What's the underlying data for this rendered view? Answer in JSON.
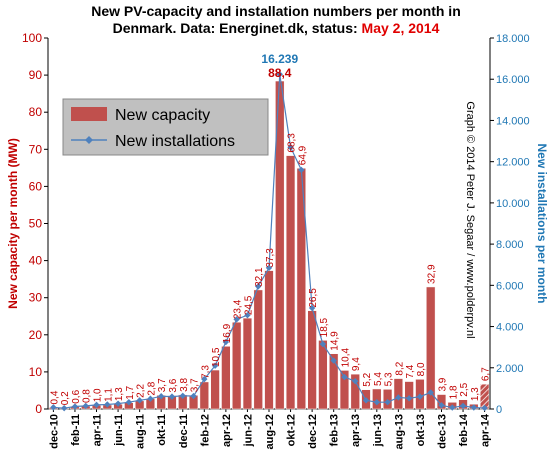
{
  "title": {
    "line1": "New PV-capacity and installation  numbers per month in",
    "line2": "Denmark. Data: Energinet.dk, status:",
    "status": "May 2, 2014"
  },
  "credit": "Graph © 2014 Peter J. Segaar / www.polderpv.nl",
  "colors": {
    "capacity": "#c0504d",
    "installations": "#4f81bd",
    "left_axis": "#c00000",
    "right_axis": "#1f77b4"
  },
  "chart_data": {
    "type": "bar",
    "categories": [
      "dec-10",
      "jan-11",
      "feb-11",
      "mar-11",
      "apr-11",
      "may-11",
      "jun-11",
      "jul-11",
      "aug-11",
      "sep-11",
      "okt-11",
      "nov-11",
      "dec-11",
      "jan-12",
      "feb-12",
      "mar-12",
      "apr-12",
      "may-12",
      "jun-12",
      "jul-12",
      "aug-12",
      "sep-12",
      "okt-12",
      "nov-12",
      "dec-12",
      "jan-13",
      "feb-13",
      "mar-13",
      "apr-13",
      "may-13",
      "jun-13",
      "jul-13",
      "aug-13",
      "sep-13",
      "okt-13",
      "nov-13",
      "dec-13",
      "jan-14",
      "feb-14",
      "mar-14",
      "apr-14"
    ],
    "tick_labels": [
      "dec-10",
      "feb-11",
      "apr-11",
      "jun-11",
      "aug-11",
      "okt-11",
      "dec-11",
      "feb-12",
      "apr-12",
      "jun-12",
      "aug-12",
      "okt-12",
      "dec-12",
      "feb-13",
      "apr-13",
      "jun-13",
      "aug-13",
      "okt-13",
      "dec-13",
      "feb-14",
      "apr-14"
    ],
    "series": [
      {
        "name": "New capacity",
        "axis": "left",
        "values": [
          0.4,
          0.2,
          0.6,
          0.8,
          1.0,
          1.1,
          1.3,
          1.7,
          2.2,
          2.8,
          3.7,
          3.6,
          3.8,
          3.7,
          7.3,
          10.5,
          16.9,
          23.4,
          24.5,
          32.1,
          37.3,
          88.4,
          68.3,
          64.9,
          26.5,
          18.5,
          14.9,
          10.4,
          9.4,
          5.2,
          5.4,
          5.3,
          8.2,
          7.4,
          8.0,
          32.9,
          3.9,
          1.8,
          2.5,
          1.3,
          6.7
        ],
        "labels": [
          "0,4",
          "0,2",
          "0,6",
          "0,8",
          "1,0",
          "1,1",
          "1,3",
          "1,7",
          "2,2",
          "2,8",
          "3,7",
          "3,6",
          "3,8",
          "3,7",
          "7,3",
          "10,5",
          "16,9",
          "23,4",
          "24,5",
          "32,1",
          "37,3",
          "88,4",
          "68,3",
          "64,9",
          "26,5",
          "18,5",
          "14,9",
          "10,4",
          "9,4",
          "5,2",
          "5,4",
          "5,3",
          "8,2",
          "7,4",
          "8,0",
          "32,9",
          "3,9",
          "1,8",
          "2,5",
          "1,3",
          "6,7"
        ]
      },
      {
        "name": "New installations",
        "axis": "right",
        "values": [
          80,
          40,
          120,
          150,
          200,
          220,
          260,
          330,
          420,
          500,
          620,
          600,
          640,
          630,
          1450,
          2100,
          3250,
          4350,
          4550,
          5950,
          6850,
          16239,
          12700,
          11600,
          4900,
          3150,
          2350,
          1550,
          1350,
          420,
          330,
          330,
          560,
          520,
          600,
          800,
          180,
          70,
          150,
          70,
          50
        ]
      }
    ],
    "peak_label": "16.239",
    "ylabel": "New capacity per month (MW)",
    "y2label": "New installations per month",
    "ylim": [
      0,
      100
    ],
    "y2lim": [
      0,
      18000
    ],
    "yticks": [
      "0",
      "10",
      "20",
      "30",
      "40",
      "50",
      "60",
      "70",
      "80",
      "90",
      "100"
    ],
    "y2ticks": [
      "0",
      "2.000",
      "4.000",
      "6.000",
      "8.000",
      "10.000",
      "12.000",
      "14.000",
      "16.000",
      "18.000"
    ],
    "legend_position": "top-left",
    "grid": false
  }
}
